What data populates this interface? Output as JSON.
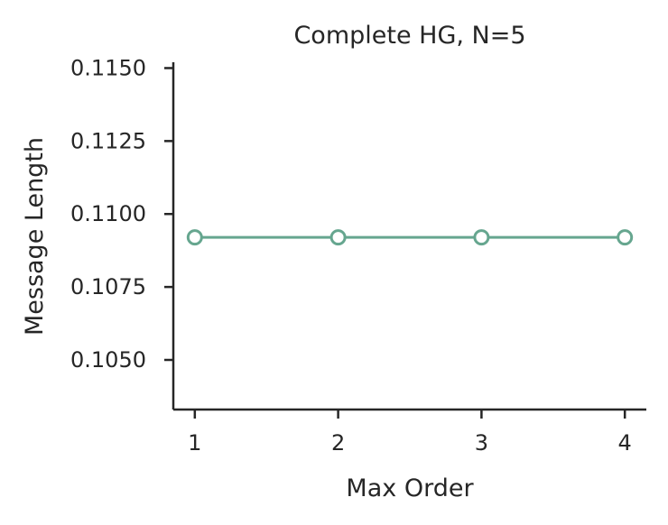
{
  "chart_data": {
    "type": "line",
    "title": "Complete HG, N=5",
    "xlabel": "Max Order",
    "ylabel": "Message Length",
    "x": [
      1,
      2,
      3,
      4
    ],
    "xticks": [
      "1",
      "2",
      "3",
      "4"
    ],
    "xlim": [
      0.85,
      4.15
    ],
    "yticks": [
      "0.1050",
      "0.1075",
      "0.1100",
      "0.1125",
      "0.1150"
    ],
    "ytick_values": [
      0.105,
      0.1075,
      0.11,
      0.1125,
      0.115
    ],
    "ylim": [
      0.1033,
      0.1152
    ],
    "grid": false,
    "series": [
      {
        "values": [
          0.1092,
          0.1092,
          0.1092,
          0.1092
        ],
        "color": "#66a68f",
        "marker": "open-circle"
      }
    ]
  }
}
